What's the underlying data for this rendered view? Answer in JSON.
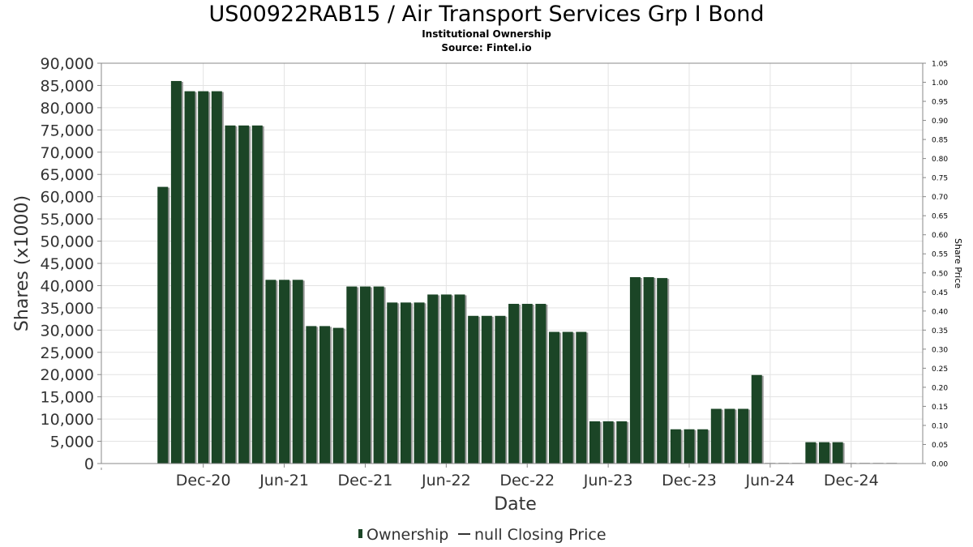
{
  "chart_data": {
    "type": "bar",
    "title": "US00922RAB15 / Air Transport Services Grp I Bond",
    "subtitle": "Institutional Ownership",
    "source": "Source: Fintel.io",
    "xlabel": "Date",
    "ylabel": "Shares (x1000)",
    "y2label": "Share Price",
    "ylim": [
      0,
      90000
    ],
    "y2lim": [
      0,
      1.05
    ],
    "yticks": [
      "0",
      "5,000",
      "10,000",
      "15,000",
      "20,000",
      "25,000",
      "30,000",
      "35,000",
      "40,000",
      "45,000",
      "50,000",
      "55,000",
      "60,000",
      "65,000",
      "70,000",
      "75,000",
      "80,000",
      "85,000",
      "90,000"
    ],
    "y2ticks": [
      "0.00",
      "0.05",
      "0.10",
      "0.15",
      "0.20",
      "0.25",
      "0.30",
      "0.35",
      "0.40",
      "0.45",
      "0.50",
      "0.55",
      "0.60",
      "0.65",
      "0.70",
      "0.75",
      "0.80",
      "0.85",
      "0.90",
      "0.95",
      "1.00",
      "1.05"
    ],
    "xticks": [
      "Dec-20",
      "Jun-21",
      "Dec-21",
      "Jun-22",
      "Dec-22",
      "Jun-23",
      "Dec-23",
      "Jun-24",
      "Dec-24"
    ],
    "grid": true,
    "legend_placement": "bottom",
    "legend": [
      "Ownership",
      "null Closing Price"
    ],
    "colors": {
      "bar": "#1b4526",
      "shadow": "#999999",
      "grid": "#e3e3e3",
      "axis": "#888888"
    },
    "series": [
      {
        "name": "Ownership",
        "dates": [
          "2020-09",
          "2020-10",
          "2020-11",
          "2020-12",
          "2021-01",
          "2021-02",
          "2021-03",
          "2021-04",
          "2021-05",
          "2021-06",
          "2021-07",
          "2021-08",
          "2021-09",
          "2021-10",
          "2021-11",
          "2021-12",
          "2022-01",
          "2022-02",
          "2022-03",
          "2022-04",
          "2022-05",
          "2022-06",
          "2022-07",
          "2022-08",
          "2022-09",
          "2022-10",
          "2022-11",
          "2022-12",
          "2023-01",
          "2023-02",
          "2023-03",
          "2023-04",
          "2023-05",
          "2023-06",
          "2023-07",
          "2023-08",
          "2023-09",
          "2023-10",
          "2023-11",
          "2023-12",
          "2024-01",
          "2024-02",
          "2024-03",
          "2024-04",
          "2024-05",
          "2024-06",
          "2024-07",
          "2024-08",
          "2024-09",
          "2024-10",
          "2024-11",
          "2024-12",
          "2025-01",
          "2025-02",
          "2025-03"
        ],
        "values": [
          62200,
          86000,
          83700,
          83700,
          83700,
          76000,
          76000,
          76000,
          41300,
          41300,
          41300,
          30900,
          30900,
          30500,
          39800,
          39800,
          39800,
          36200,
          36200,
          36200,
          38000,
          38000,
          38000,
          33200,
          33200,
          33200,
          35900,
          35900,
          35900,
          29600,
          29600,
          29600,
          9500,
          9500,
          9500,
          41900,
          41900,
          41700,
          7700,
          7700,
          7700,
          12300,
          12300,
          12300,
          19900,
          0,
          0,
          0,
          4800,
          4800,
          4800,
          0,
          0,
          0,
          0
        ]
      }
    ]
  }
}
